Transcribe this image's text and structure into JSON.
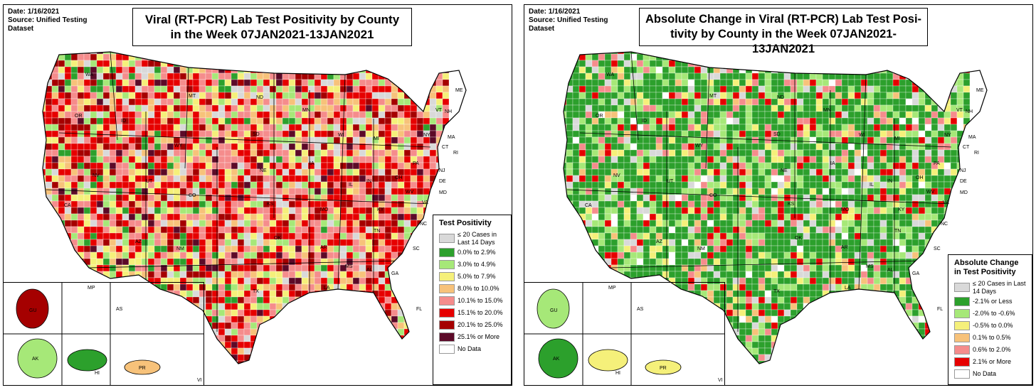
{
  "left": {
    "meta_date": "Date: 1/16/2021",
    "meta_source": "Source: Unified Testing",
    "meta_dataset": "Dataset",
    "title_line1": "Viral (RT-PCR) Lab Test Positivity by County",
    "title_line2": "in the Week 07JAN2021-13JAN2021",
    "legend_title": "Test Positivity",
    "legend": [
      {
        "label": "≤ 20 Cases in Last 14 Days",
        "color": "#d9d9d9"
      },
      {
        "label": "0.0% to 2.9%",
        "color": "#2ca02c"
      },
      {
        "label": "3.0% to 4.9%",
        "color": "#a6e878"
      },
      {
        "label": "5.0% to 7.9%",
        "color": "#f5f07a"
      },
      {
        "label": "8.0% to 10.0%",
        "color": "#f7c27a"
      },
      {
        "label": "10.1% to 15.0%",
        "color": "#f58c8c"
      },
      {
        "label": "15.1% to 20.0%",
        "color": "#e60000"
      },
      {
        "label": "20.1% to 25.0%",
        "color": "#a50000"
      },
      {
        "label": "25.1% or More",
        "color": "#5c0a28"
      },
      {
        "label": "No Data",
        "color": "#ffffff"
      }
    ],
    "states": [
      "WA",
      "OR",
      "ID",
      "NV",
      "CA",
      "UT",
      "AZ",
      "WY",
      "CO",
      "NM",
      "MT",
      "ND",
      "SD",
      "NE",
      "KS",
      "OK",
      "TX",
      "MN",
      "IA",
      "MO",
      "AR",
      "LA",
      "WI",
      "IL",
      "MI",
      "IN",
      "OH",
      "KY",
      "TN",
      "MS",
      "AL",
      "GA",
      "FL",
      "SC",
      "NC",
      "VA",
      "WV",
      "PA",
      "NY",
      "VT",
      "NH",
      "ME",
      "MA",
      "CT",
      "RI",
      "NJ",
      "DE",
      "MD"
    ],
    "insets": [
      "GU",
      "MP",
      "AS",
      "AK",
      "HI",
      "PR",
      "VI"
    ]
  },
  "right": {
    "meta_date": "Date: 1/16/2021",
    "meta_source": "Source: Unified Testing",
    "meta_dataset": "Dataset",
    "title_line1": "Absolute Change in Viral (RT-PCR) Lab Test Posi-",
    "title_line2": "tivity by County in the Week 07JAN2021-13JAN2021",
    "legend_title_line1": "Absolute Change",
    "legend_title_line2": "in Test Positivity",
    "legend": [
      {
        "label": "≤ 20 Cases in Last 14 Days",
        "color": "#d9d9d9"
      },
      {
        "label": "-2.1% or Less",
        "color": "#2ca02c"
      },
      {
        "label": "-2.0% to -0.6%",
        "color": "#a6e878"
      },
      {
        "label": "-0.5% to 0.0%",
        "color": "#f5f07a"
      },
      {
        "label": "0.1% to 0.5%",
        "color": "#f7c27a"
      },
      {
        "label": "0.6% to 2.0%",
        "color": "#f58c8c"
      },
      {
        "label": "2.1% or More",
        "color": "#e60000"
      },
      {
        "label": "No Data",
        "color": "#ffffff"
      }
    ],
    "states": [
      "WA",
      "OR",
      "ID",
      "NV",
      "CA",
      "UT",
      "AZ",
      "WY",
      "CO",
      "NM",
      "MT",
      "ND",
      "SD",
      "NE",
      "KS",
      "OK",
      "TX",
      "MN",
      "IA",
      "MO",
      "AR",
      "LA",
      "WI",
      "IL",
      "MI",
      "IN",
      "OH",
      "KY",
      "TN",
      "MS",
      "AL",
      "GA",
      "FL",
      "SC",
      "NC",
      "VA",
      "WV",
      "PA",
      "NY",
      "VT",
      "NH",
      "ME",
      "MA",
      "CT",
      "RI",
      "NJ",
      "DE",
      "MD"
    ],
    "insets": [
      "GU",
      "MP",
      "AS",
      "AK",
      "HI",
      "PR",
      "VI"
    ]
  }
}
